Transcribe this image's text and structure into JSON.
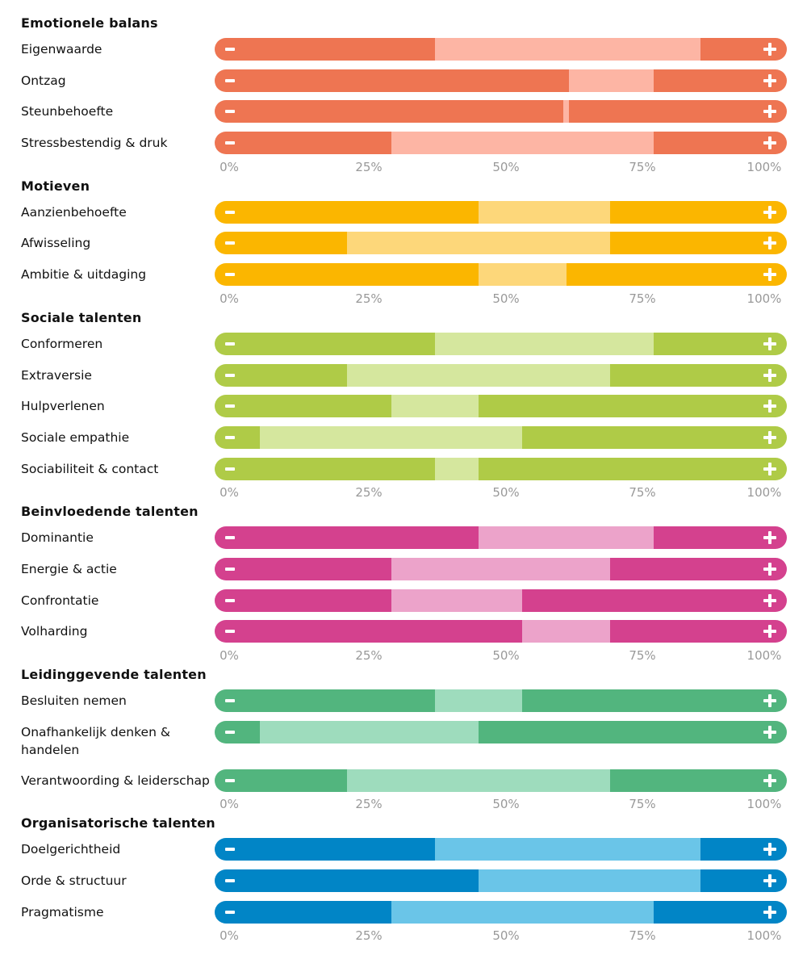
{
  "chart_data": {
    "type": "range-bar",
    "axis_ticks": [
      "0%",
      "25%",
      "50%",
      "75%",
      "100%"
    ],
    "xlim": [
      0,
      100
    ],
    "minus_icon": "minus-icon",
    "plus_icon": "plus-icon",
    "sections": [
      {
        "title": "Emotionele balans",
        "color": "#EE7552",
        "light": "#FDB5A4",
        "items": [
          {
            "label": "Eigenwaarde",
            "range": [
              37,
              85.5
            ]
          },
          {
            "label": "Ontzag",
            "range": [
              61.5,
              77
            ]
          },
          {
            "label": "Steunbehoefte",
            "range": [
              60.5,
              61.5
            ]
          },
          {
            "label": "Stressbestendig & druk",
            "range": [
              29,
              77
            ]
          }
        ]
      },
      {
        "title": "Motieven",
        "color": "#FBB600",
        "light": "#FDD77A",
        "items": [
          {
            "label": "Aanzienbehoefte",
            "range": [
              45,
              69
            ]
          },
          {
            "label": "Afwisseling",
            "range": [
              21,
              69
            ]
          },
          {
            "label": "Ambitie & uitdaging",
            "range": [
              45,
              61
            ]
          }
        ]
      },
      {
        "title": "Sociale talenten",
        "color": "#AFCB47",
        "light": "#D5E79E",
        "items": [
          {
            "label": "Conformeren",
            "range": [
              37,
              77
            ]
          },
          {
            "label": "Extraversie",
            "range": [
              21,
              69
            ]
          },
          {
            "label": "Hulpverlenen",
            "range": [
              29,
              45
            ]
          },
          {
            "label": "Sociale empathie",
            "range": [
              5,
              53
            ]
          },
          {
            "label": "Sociabiliteit & contact",
            "range": [
              37,
              45
            ]
          }
        ]
      },
      {
        "title": "Beinvloedende talenten",
        "color": "#D4418E",
        "light": "#ECA3CA",
        "items": [
          {
            "label": "Dominantie",
            "range": [
              45,
              77
            ]
          },
          {
            "label": "Energie & actie",
            "range": [
              29,
              69
            ]
          },
          {
            "label": "Confrontatie",
            "range": [
              29,
              53
            ]
          },
          {
            "label": "Volharding",
            "range": [
              53,
              69
            ]
          }
        ]
      },
      {
        "title": "Leidinggevende talenten",
        "color": "#52B57E",
        "light": "#9EDCBD",
        "items": [
          {
            "label": "Besluiten nemen",
            "range": [
              37,
              53
            ]
          },
          {
            "label": "Onafhankelijk denken & handelen",
            "range": [
              5,
              45
            ]
          },
          {
            "label": "Verantwoording & leiderschap",
            "range": [
              21,
              69
            ]
          }
        ]
      },
      {
        "title": "Organisatorische talenten",
        "color": "#0185C6",
        "light": "#6AC5E8",
        "items": [
          {
            "label": "Doelgerichtheid",
            "range": [
              37,
              85.5
            ]
          },
          {
            "label": "Orde & structuur",
            "range": [
              45,
              85.5
            ]
          },
          {
            "label": "Pragmatisme",
            "range": [
              29,
              77
            ]
          }
        ]
      }
    ]
  }
}
